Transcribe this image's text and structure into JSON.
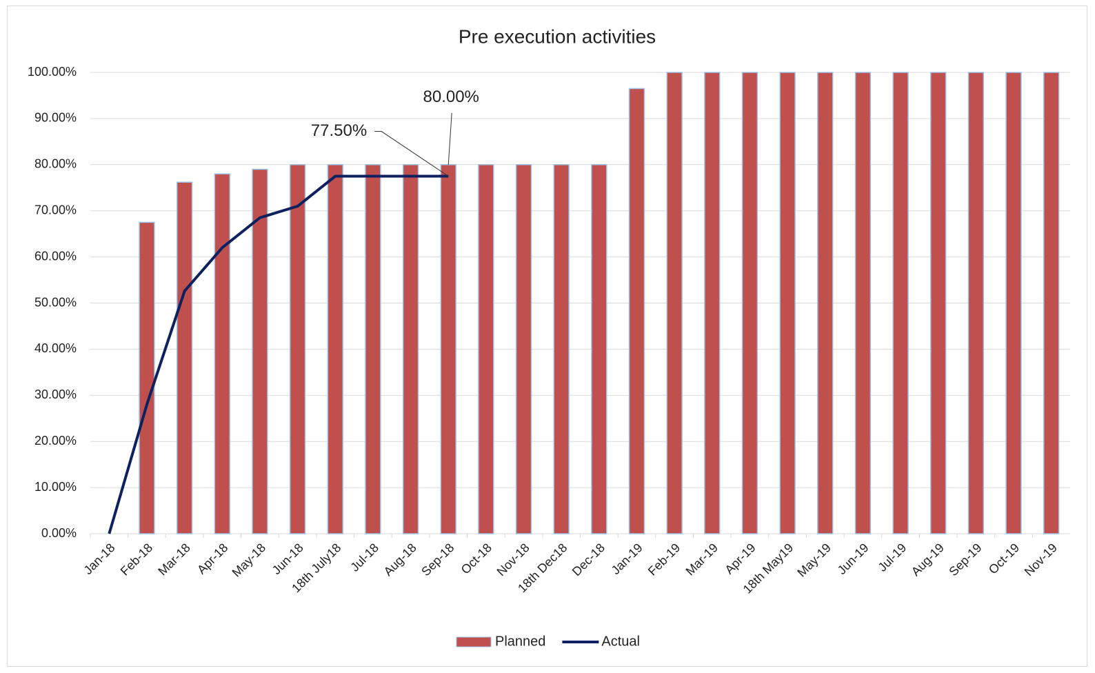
{
  "chart_data": {
    "type": "bar_line",
    "title": "Pre execution activities",
    "categories": [
      "Jan-18",
      "Feb-18",
      "Mar-18",
      "Apr-18",
      "May-18",
      "Jun-18",
      "18th July18",
      "Jul-18",
      "Aug-18",
      "Sep-18",
      "Oct-18",
      "Nov-18",
      "18th Dec18",
      "Dec-18",
      "Jan-19",
      "Feb-19",
      "Mar-19",
      "Apr-19",
      "18th May19",
      "May-19",
      "Jun-19",
      "Jul-19",
      "Aug-19",
      "Sep-19",
      "Oct-19",
      "Nov-19"
    ],
    "series": [
      {
        "name": "Planned",
        "type": "bar",
        "color": "#c0504d",
        "values": [
          0,
          67.5,
          76.2,
          78,
          79,
          80,
          80,
          80,
          80,
          80,
          80,
          80,
          80,
          80,
          96.5,
          100,
          100,
          100,
          100,
          100,
          100,
          100,
          100,
          100,
          100,
          100
        ],
        "value_labels": [
          null,
          null,
          null,
          null,
          null,
          null,
          null,
          null,
          null,
          "80.00%",
          null,
          null,
          null,
          null,
          null,
          null,
          null,
          null,
          null,
          null,
          null,
          null,
          null,
          null,
          null,
          null
        ]
      },
      {
        "name": "Actual",
        "type": "line",
        "color": "#0d2160",
        "values": [
          0,
          28,
          52.6,
          62,
          68.5,
          71,
          77.5,
          77.5,
          77.5,
          77.5,
          null,
          null,
          null,
          null,
          null,
          null,
          null,
          null,
          null,
          null,
          null,
          null,
          null,
          null,
          null,
          null
        ],
        "value_labels": [
          null,
          null,
          null,
          null,
          null,
          null,
          null,
          null,
          null,
          "77.50%",
          null,
          null,
          null,
          null,
          null,
          null,
          null,
          null,
          null,
          null,
          null,
          null,
          null,
          null,
          null,
          null
        ]
      }
    ],
    "ylim": [
      0,
      100
    ],
    "yticks": [
      {
        "value": 0,
        "label": "0.00%"
      },
      {
        "value": 10,
        "label": "10.00%"
      },
      {
        "value": 20,
        "label": "20.00%"
      },
      {
        "value": 30,
        "label": "30.00%"
      },
      {
        "value": 40,
        "label": "40.00%"
      },
      {
        "value": 50,
        "label": "50.00%"
      },
      {
        "value": 60,
        "label": "60.00%"
      },
      {
        "value": 70,
        "label": "70.00%"
      },
      {
        "value": 80,
        "label": "80.00%"
      },
      {
        "value": 90,
        "label": "90.00%"
      },
      {
        "value": 100,
        "label": "100.00%"
      }
    ],
    "grid": true,
    "legend": "bottom"
  }
}
